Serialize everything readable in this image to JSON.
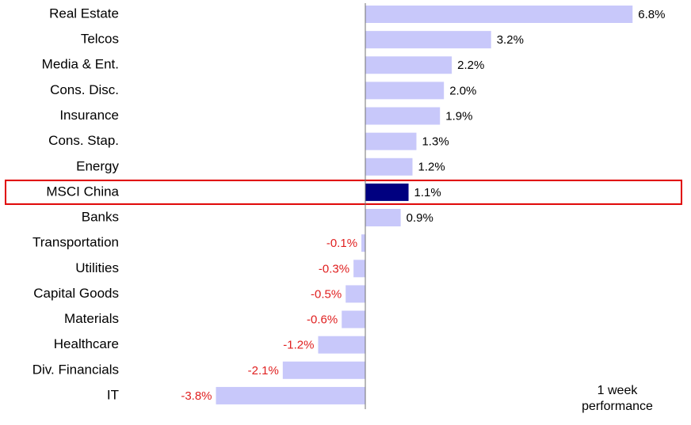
{
  "chart_data": {
    "type": "bar",
    "orientation": "horizontal",
    "categories": [
      "Real Estate",
      "Telcos",
      "Media & Ent.",
      "Cons. Disc.",
      "Insurance",
      "Cons. Stap.",
      "Energy",
      "MSCI China",
      "Banks",
      "Transportation",
      "Utilities",
      "Capital Goods",
      "Materials",
      "Healthcare",
      "Div. Financials",
      "IT"
    ],
    "values": [
      6.8,
      3.2,
      2.2,
      2.0,
      1.9,
      1.3,
      1.2,
      1.1,
      0.9,
      -0.1,
      -0.3,
      -0.5,
      -0.6,
      -1.2,
      -2.1,
      -3.8
    ],
    "value_labels": [
      "6.8%",
      "3.2%",
      "2.2%",
      "2.0%",
      "1.9%",
      "1.3%",
      "1.2%",
      "1.1%",
      "0.9%",
      "-0.1%",
      "-0.3%",
      "-0.5%",
      "-0.6%",
      "-1.2%",
      "-2.1%",
      "-3.8%"
    ],
    "color": "#c8c8fa",
    "highlight_index": 7,
    "highlight_color": "#000080",
    "highlight_box_color": "#e00000",
    "negative_label_color": "#e02020",
    "annotation": "1 week performance"
  }
}
